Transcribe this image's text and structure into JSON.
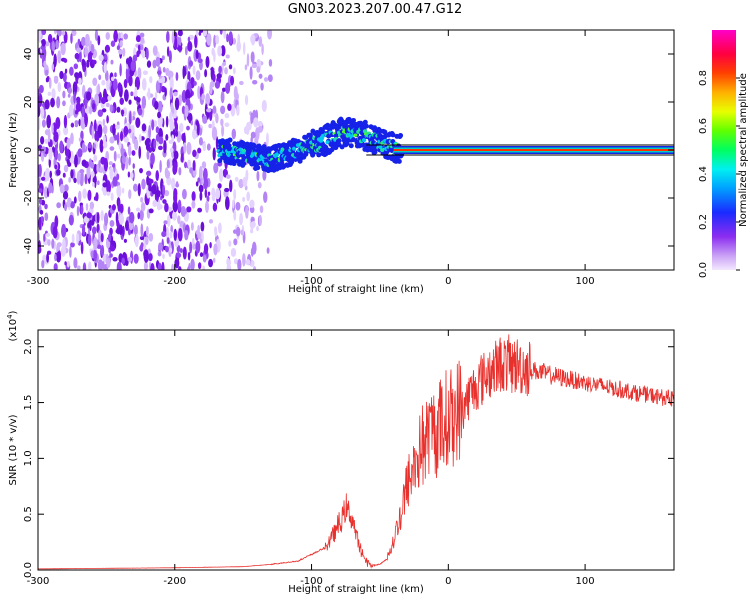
{
  "title": "GN03.2023.207.00.47.G12",
  "colors": {
    "snr_line": "#e8302c",
    "frame": "#000000",
    "scatter_purple": "#7a18e8",
    "background": "#ffffff"
  },
  "chart_data": [
    {
      "type": "heatmap",
      "xlabel": "Height of straight line (km)",
      "ylabel": "Frequency (Hz)",
      "xlim": [
        -300,
        165
      ],
      "ylim": [
        -50,
        50
      ],
      "x_ticks": [
        -300,
        -200,
        -100,
        0,
        100
      ],
      "y_ticks": [
        -40,
        -20,
        0,
        20,
        40
      ],
      "colorbar": {
        "label": "Normalized spectral amplitude",
        "range": [
          0.0,
          1.0
        ],
        "ticks": [
          "0.0",
          "0.2",
          "0.4",
          "0.6",
          "0.8"
        ],
        "colormap": "rainbow (white-violet-blue-cyan-green-yellow-orange-red-magenta)"
      },
      "features": {
        "noise_region_x": [
          -300,
          -145
        ],
        "signal_track": {
          "x": [
            -165,
            -150,
            -130,
            -110,
            -90,
            -75,
            -60,
            -45,
            -30,
            0,
            50,
            100,
            165
          ],
          "freq": [
            0,
            -2,
            -4,
            0,
            4,
            8,
            6,
            2,
            0,
            0,
            0,
            0,
            0
          ]
        }
      }
    },
    {
      "type": "line",
      "xlabel": "Height of straight line (km)",
      "ylabel": "SNR (10 * v/v)",
      "y_multiplier": "(x10^4)",
      "xlim": [
        -300,
        165
      ],
      "ylim": [
        0,
        2.15
      ],
      "x_ticks": [
        -300,
        -200,
        -100,
        0,
        100
      ],
      "y_ticks": [
        "0.0",
        "0.5",
        "1.0",
        "1.5",
        "2.0"
      ],
      "series": [
        {
          "x": [
            -300,
            -250,
            -200,
            -150,
            -130,
            -110,
            -90,
            -80,
            -75,
            -70,
            -65,
            -60,
            -55,
            -50,
            -45,
            -40,
            -35,
            -30,
            -25,
            -20,
            -15,
            -10,
            -5,
            0,
            10,
            20,
            30,
            40,
            50,
            60,
            80,
            100,
            120,
            140,
            165
          ],
          "values": [
            0.01,
            0.015,
            0.02,
            0.03,
            0.05,
            0.08,
            0.2,
            0.4,
            0.55,
            0.45,
            0.2,
            0.08,
            0.04,
            0.05,
            0.1,
            0.25,
            0.5,
            0.75,
            0.95,
            1.1,
            1.2,
            1.25,
            1.3,
            1.35,
            1.45,
            1.65,
            1.78,
            1.85,
            1.83,
            1.8,
            1.73,
            1.68,
            1.63,
            1.58,
            1.53
          ]
        }
      ]
    }
  ]
}
